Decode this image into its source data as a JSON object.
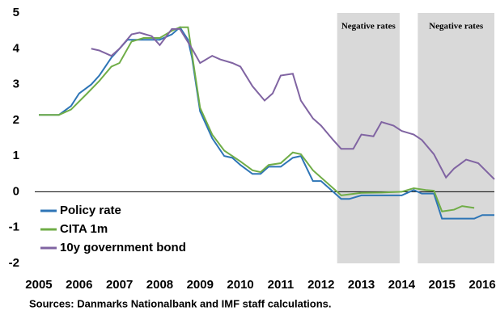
{
  "chart_data": {
    "type": "line",
    "source": "Sources: Danmarks Nationalbank and IMF staff calculations.",
    "xlim": [
      2004.9,
      2016.3
    ],
    "xticks": [
      2005,
      2006,
      2007,
      2008,
      2009,
      2010,
      2011,
      2012,
      2013,
      2014,
      2015,
      2016
    ],
    "ylim": [
      -2,
      5
    ],
    "yticks": [
      -2,
      -1,
      0,
      1,
      2,
      3,
      4,
      5
    ],
    "shaded": [
      {
        "from": 2012.4,
        "to": 2013.95,
        "label": "Negative rates"
      },
      {
        "from": 2014.4,
        "to": 2016.3,
        "label": "Negative rates"
      }
    ],
    "shade_color": "#d9d9d9",
    "legend": "lower left",
    "series": [
      {
        "name": "Policy rate",
        "color": "#2e75b6",
        "x": [
          2005.0,
          2005.5,
          2005.8,
          2006.0,
          2006.3,
          2006.5,
          2006.8,
          2007.0,
          2007.2,
          2007.5,
          2007.8,
          2008.0,
          2008.3,
          2008.5,
          2008.7,
          2008.8,
          2009.0,
          2009.3,
          2009.6,
          2009.8,
          2010.0,
          2010.3,
          2010.5,
          2010.7,
          2011.0,
          2011.3,
          2011.5,
          2011.8,
          2012.0,
          2012.3,
          2012.5,
          2012.7,
          2013.0,
          2013.5,
          2014.0,
          2014.3,
          2014.5,
          2014.8,
          2015.0,
          2015.5,
          2015.8,
          2016.0,
          2016.3
        ],
        "values": [
          2.15,
          2.15,
          2.4,
          2.75,
          3.0,
          3.25,
          3.75,
          4.0,
          4.25,
          4.25,
          4.25,
          4.25,
          4.4,
          4.6,
          4.25,
          3.75,
          2.25,
          1.5,
          1.0,
          0.95,
          0.75,
          0.5,
          0.5,
          0.7,
          0.7,
          0.95,
          1.0,
          0.3,
          0.3,
          0.0,
          -0.2,
          -0.2,
          -0.1,
          -0.1,
          -0.1,
          0.05,
          -0.05,
          -0.05,
          -0.75,
          -0.75,
          -0.75,
          -0.65,
          -0.65
        ]
      },
      {
        "name": "CITA 1m",
        "color": "#70ad47",
        "x": [
          2005.0,
          2005.5,
          2005.8,
          2006.2,
          2006.5,
          2006.8,
          2007.0,
          2007.3,
          2007.6,
          2008.0,
          2008.3,
          2008.5,
          2008.7,
          2009.0,
          2009.3,
          2009.6,
          2010.0,
          2010.3,
          2010.5,
          2010.7,
          2011.0,
          2011.3,
          2011.5,
          2011.8,
          2012.3,
          2012.5,
          2013.0,
          2013.5,
          2014.0,
          2014.3,
          2014.6,
          2014.8,
          2015.0,
          2015.3,
          2015.5,
          2015.8
        ],
        "values": [
          2.15,
          2.15,
          2.3,
          2.75,
          3.1,
          3.5,
          3.6,
          4.2,
          4.3,
          4.3,
          4.5,
          4.6,
          4.6,
          2.35,
          1.6,
          1.15,
          0.85,
          0.6,
          0.55,
          0.75,
          0.8,
          1.1,
          1.05,
          0.6,
          0.1,
          -0.1,
          -0.03,
          -0.02,
          0.0,
          0.1,
          0.05,
          0.03,
          -0.55,
          -0.5,
          -0.4,
          -0.45
        ]
      },
      {
        "name": "10y government bond",
        "color": "#8064a2",
        "x": [
          2006.3,
          2006.5,
          2006.8,
          2007.0,
          2007.3,
          2007.5,
          2007.8,
          2008.0,
          2008.3,
          2008.5,
          2008.8,
          2009.0,
          2009.3,
          2009.5,
          2009.8,
          2010.0,
          2010.3,
          2010.6,
          2010.8,
          2011.0,
          2011.3,
          2011.5,
          2011.8,
          2012.0,
          2012.3,
          2012.5,
          2012.8,
          2013.0,
          2013.3,
          2013.5,
          2013.8,
          2014.0,
          2014.3,
          2014.5,
          2014.8,
          2015.1,
          2015.3,
          2015.6,
          2015.9,
          2016.3
        ],
        "values": [
          4.0,
          3.95,
          3.8,
          4.0,
          4.4,
          4.45,
          4.35,
          4.1,
          4.55,
          4.55,
          4.0,
          3.6,
          3.8,
          3.7,
          3.6,
          3.5,
          2.95,
          2.55,
          2.75,
          3.25,
          3.3,
          2.55,
          2.05,
          1.85,
          1.45,
          1.2,
          1.2,
          1.6,
          1.55,
          1.95,
          1.85,
          1.7,
          1.6,
          1.45,
          1.05,
          0.4,
          0.65,
          0.9,
          0.8,
          0.35
        ]
      }
    ]
  }
}
